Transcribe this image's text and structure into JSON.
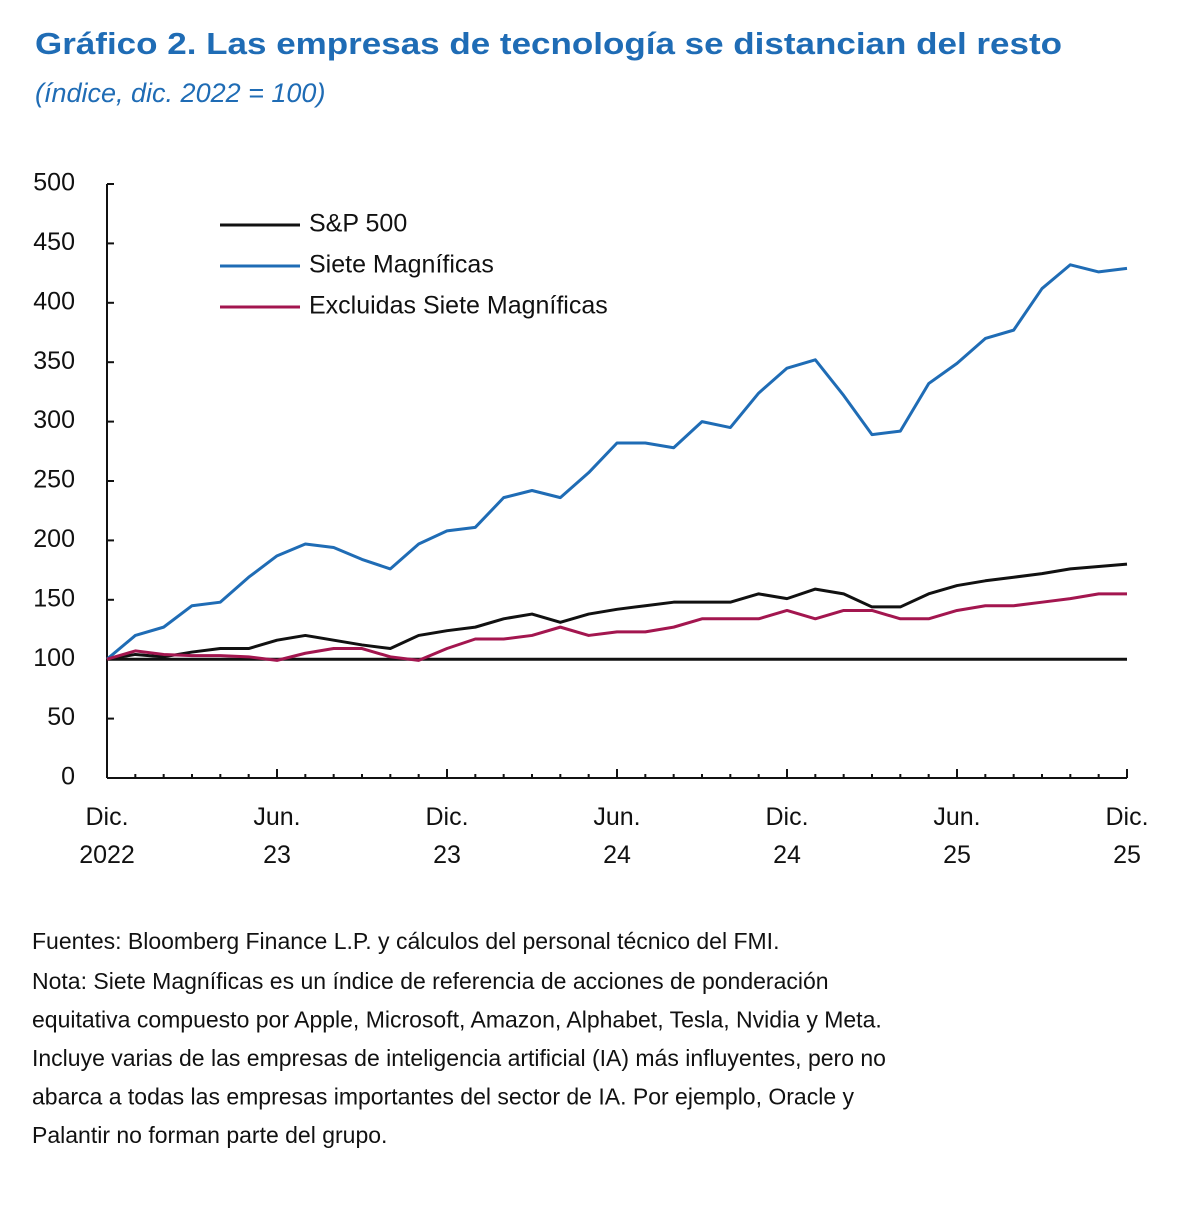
{
  "chart_data": {
    "type": "line",
    "title": "Gráfico 2.  Las empresas de tecnología se distancian del resto",
    "subtitle": "(índice, dic. 2022 = 100)",
    "categories": [
      "Dic. 2022",
      null,
      null,
      null,
      null,
      null,
      "Jun. 23",
      null,
      null,
      null,
      null,
      null,
      "Dic. 23",
      null,
      null,
      null,
      null,
      null,
      "Jun. 24",
      null,
      null,
      null,
      null,
      null,
      "Dic. 24",
      null,
      null,
      null,
      null,
      null,
      "Jun. 25",
      null,
      null,
      null,
      null,
      null,
      "Dic. 25"
    ],
    "series": [
      {
        "name": "S&P 500",
        "color": "#111111",
        "values": [
          100,
          104,
          102,
          106,
          109,
          109,
          116,
          120,
          116,
          112,
          109,
          120,
          124,
          127,
          134,
          138,
          131,
          138,
          142,
          145,
          148,
          148,
          148,
          155,
          151,
          159,
          155,
          144,
          144,
          155,
          162,
          166,
          169,
          172,
          176,
          178,
          180
        ]
      },
      {
        "name": "Siete Magníficas",
        "color": "#1f6cb5",
        "values": [
          100,
          120,
          127,
          145,
          148,
          169,
          187,
          197,
          194,
          184,
          176,
          197,
          208,
          211,
          236,
          242,
          236,
          257,
          282,
          282,
          278,
          300,
          295,
          324,
          345,
          352,
          322,
          289,
          292,
          332,
          349,
          370,
          377,
          412,
          432,
          426,
          429
        ]
      },
      {
        "name": "Excluidas Siete Magníficas",
        "color": "#a3164f",
        "values": [
          100,
          107,
          104,
          103,
          103,
          102,
          99,
          105,
          109,
          109,
          102,
          99,
          109,
          117,
          117,
          120,
          127,
          120,
          123,
          123,
          127,
          134,
          134,
          134,
          141,
          134,
          141,
          141,
          134,
          134,
          141,
          145,
          145,
          148,
          151,
          155,
          155
        ]
      }
    ],
    "reference_line": 100,
    "ylim": [
      0,
      500
    ],
    "yticks": [
      0,
      50,
      100,
      150,
      200,
      250,
      300,
      350,
      400,
      450,
      500
    ],
    "legend": "upper left",
    "source": "Fuentes: Bloomberg Finance L.P. y cálculos del personal técnico del FMI.",
    "note": [
      "Nota: Siete Magníficas es un índice de referencia de acciones de ponderación",
      "equitativa compuesto por Apple, Microsoft, Amazon, Alphabet, Tesla, Nvidia y Meta.",
      "Incluye varias de las empresas de inteligencia artificial (IA) más influyentes, pero no",
      "abarca a todas las empresas importantes del sector de IA. Por ejemplo, Oracle y",
      "Palantir no forman parte del grupo."
    ]
  }
}
